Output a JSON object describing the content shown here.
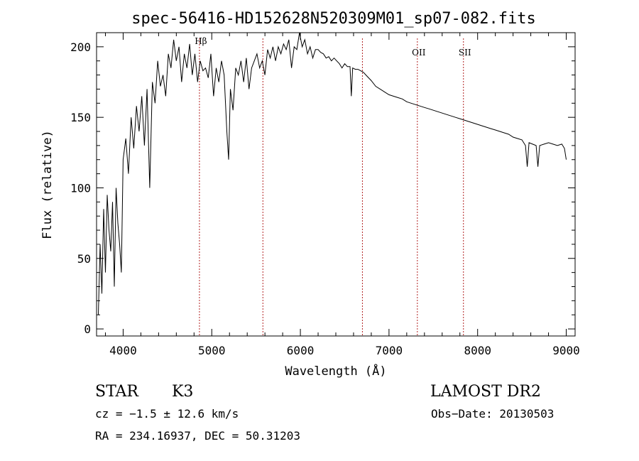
{
  "chart_data": {
    "type": "line",
    "title": "spec-56416-HD152628N520309M01_sp07-082.fits",
    "xlabel": "Wavelength (Å)",
    "ylabel": "Flux (relative)",
    "xlim": [
      3700,
      9100
    ],
    "ylim": [
      -5,
      210
    ],
    "x_ticks": [
      4000,
      5000,
      6000,
      7000,
      8000,
      9000
    ],
    "y_ticks": [
      0,
      50,
      100,
      150,
      200
    ],
    "grid": false,
    "legend": "none",
    "line_color": "#000000",
    "marker_color": "#b22222",
    "spectral_lines": [
      {
        "name": "Hβ",
        "wavelength": 4861,
        "label": "Hβ"
      },
      {
        "name": "",
        "wavelength": 5577,
        "label": ""
      },
      {
        "name": "",
        "wavelength": 6700,
        "label": ""
      },
      {
        "name": "OII",
        "wavelength": 7320,
        "label": "OII"
      },
      {
        "name": "SII",
        "wavelength": 7840,
        "label": "SII"
      }
    ],
    "series": [
      {
        "x": [
          3720,
          3740,
          3760,
          3780,
          3800,
          3820,
          3840,
          3860,
          3880,
          3900,
          3920,
          3940,
          3960,
          3980,
          4000,
          4030,
          4060,
          4090,
          4120,
          4150,
          4180,
          4210,
          4240,
          4270,
          4300,
          4330,
          4360,
          4390,
          4420,
          4450,
          4480,
          4510,
          4540,
          4570,
          4600,
          4630,
          4660,
          4690,
          4720,
          4750,
          4780,
          4810,
          4840,
          4870,
          4900,
          4930,
          4960,
          4990,
          5020,
          5050,
          5080,
          5110,
          5140,
          5170,
          5190,
          5210,
          5240,
          5270,
          5300,
          5330,
          5360,
          5390,
          5420,
          5450,
          5480,
          5510,
          5540,
          5570,
          5600,
          5630,
          5660,
          5690,
          5720,
          5750,
          5780,
          5810,
          5840,
          5870,
          5900,
          5930,
          5960,
          5990,
          6020,
          6050,
          6080,
          6110,
          6140,
          6170,
          6200,
          6230,
          6260,
          6290,
          6320,
          6350,
          6380,
          6410,
          6440,
          6470,
          6500,
          6530,
          6560,
          6575,
          6590,
          6620,
          6650,
          6680,
          6710,
          6740,
          6770,
          6800,
          6850,
          6900,
          6950,
          7000,
          7050,
          7100,
          7150,
          7200,
          7250,
          7300,
          7350,
          7400,
          7450,
          7500,
          7550,
          7600,
          7650,
          7700,
          7750,
          7800,
          7850,
          7900,
          7950,
          8000,
          8050,
          8100,
          8150,
          8200,
          8250,
          8300,
          8350,
          8400,
          8450,
          8500,
          8540,
          8560,
          8580,
          8620,
          8660,
          8680,
          8700,
          8750,
          8800,
          8850,
          8900,
          8950,
          8980,
          9000
        ],
        "y": [
          10,
          60,
          25,
          85,
          40,
          95,
          70,
          55,
          90,
          30,
          100,
          75,
          60,
          40,
          120,
          135,
          110,
          150,
          128,
          158,
          140,
          165,
          130,
          170,
          100,
          175,
          160,
          190,
          172,
          180,
          165,
          195,
          185,
          205,
          190,
          200,
          175,
          195,
          185,
          202,
          180,
          195,
          175,
          190,
          183,
          185,
          178,
          195,
          165,
          185,
          175,
          190,
          180,
          140,
          120,
          170,
          155,
          185,
          180,
          190,
          175,
          192,
          170,
          185,
          190,
          195,
          185,
          190,
          180,
          198,
          192,
          200,
          190,
          200,
          195,
          202,
          198,
          205,
          185,
          200,
          198,
          210,
          200,
          205,
          195,
          200,
          192,
          198,
          198,
          196,
          195,
          192,
          193,
          190,
          192,
          190,
          188,
          185,
          188,
          186,
          186,
          165,
          185,
          184,
          184,
          183,
          182,
          180,
          178,
          176,
          172,
          170,
          168,
          166,
          165,
          164,
          163,
          161,
          160,
          159,
          158,
          157,
          156,
          155,
          154,
          153,
          152,
          151,
          150,
          149,
          148,
          147,
          146,
          145,
          144,
          143,
          142,
          141,
          140,
          139,
          138,
          136,
          135,
          134,
          130,
          115,
          132,
          131,
          130,
          115,
          130,
          131,
          132,
          131,
          130,
          131,
          128,
          120
        ]
      }
    ]
  },
  "info": {
    "object_type": "STAR",
    "subclass": "K3",
    "survey": "LAMOST DR2",
    "cz": "cz = −1.5 ± 12.6 km/s",
    "obs_date": "Obs−Date: 20130503",
    "radec": "RA = 234.16937, DEC =  50.31203"
  }
}
